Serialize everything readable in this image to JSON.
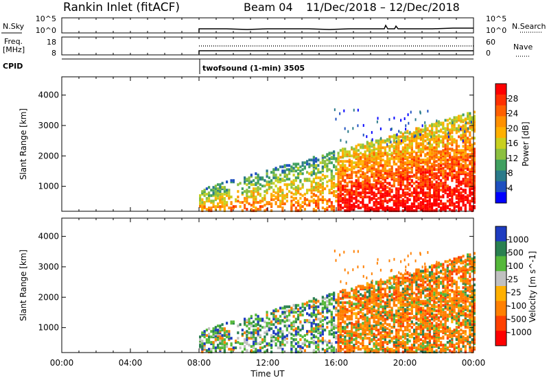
{
  "header": {
    "station": "Rankin Inlet (fitACF)",
    "beam": "Beam 04",
    "date_range": "11/Dec/2018 – 12/Dec/2018"
  },
  "top_panels": {
    "nsky_label": "N.Sky",
    "nsky_ticks": [
      "10^5",
      "10^0"
    ],
    "nsearch_label": "N.Search",
    "nsearch_ticks": [
      "10^5",
      "10^0"
    ],
    "freq_label": "Freq.",
    "freq_unit": "[MHz]",
    "freq_ticks": [
      "18",
      "8"
    ],
    "nave_label": "Nave",
    "nave_ticks": [
      "60",
      "0"
    ],
    "cpid_label": "CPID",
    "cpid_text": "twofsound (1-min) 3505"
  },
  "power_colorbar": {
    "label": "Power [dB]",
    "ticks": [
      "28",
      "24",
      "20",
      "16",
      "12",
      "8",
      "4"
    ],
    "colors": [
      "#ff0000",
      "#ff3000",
      "#ff6000",
      "#ff9000",
      "#ffb000",
      "#c8d020",
      "#8cc040",
      "#40a060",
      "#2a7a8a",
      "#1e50c0",
      "#0000ff"
    ]
  },
  "velocity_colorbar": {
    "label": "Velocity [m s^-1]",
    "ticks": [
      "1000",
      "500",
      "100",
      "25",
      "-25",
      "-100",
      "-500",
      "-1000"
    ],
    "colors": [
      "#1e3cc0",
      "#2a8050",
      "#55b83a",
      "#c0c0c0",
      "#ffb000",
      "#ff8000",
      "#ff4000",
      "#ff0000"
    ]
  },
  "chart_data": [
    {
      "type": "line",
      "title": "",
      "ylabel": "N.Sky",
      "y_right_label": "N.Search",
      "ylog": true,
      "ylim": [
        1,
        100000
      ],
      "xlim": [
        0,
        24
      ],
      "series": [
        {
          "values_x": [
            8,
            9,
            10,
            11,
            12,
            13,
            14,
            15,
            16,
            17,
            18,
            19,
            20,
            21,
            22,
            23,
            24
          ],
          "values_y": [
            8,
            8,
            8,
            8,
            8,
            8,
            8,
            8,
            8,
            9,
            9,
            12,
            9,
            9,
            9,
            9,
            10
          ]
        }
      ]
    },
    {
      "type": "line",
      "ylabel": "Freq. [MHz]",
      "y_right_label": "Nave",
      "ylim": [
        8,
        18
      ],
      "xlim": [
        0,
        24
      ],
      "series": [
        {
          "values_x": [
            8,
            24
          ],
          "values_y": [
            10,
            10
          ]
        },
        {
          "values_x": [
            8,
            24
          ],
          "values_y": [
            12,
            12
          ]
        }
      ]
    },
    {
      "type": "heatmap",
      "xlabel": "",
      "ylabel": "Slant Range [km]",
      "xlim": [
        0,
        24
      ],
      "ylim": [
        180,
        4600
      ],
      "yticks": [
        1000,
        2000,
        3000,
        4000
      ],
      "colorbar": "Power [dB]"
    },
    {
      "type": "heatmap",
      "xlabel": "Time UT",
      "ylabel": "Slant Range [km]",
      "xlim": [
        0,
        24
      ],
      "ylim": [
        180,
        4600
      ],
      "yticks": [
        1000,
        2000,
        3000,
        4000
      ],
      "xticks": [
        "00:00",
        "04:00",
        "08:00",
        "12:00",
        "16:00",
        "20:00",
        "00:00"
      ],
      "colorbar": "Velocity [m s^-1]"
    }
  ]
}
